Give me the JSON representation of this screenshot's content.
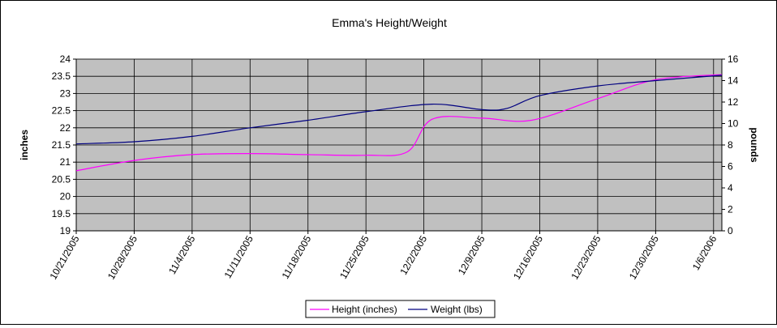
{
  "chart_data": {
    "type": "line",
    "title": "Emma's Height/Weight",
    "ylabel": "inches",
    "y2label": "pounds",
    "xlabel": "",
    "x_ticks": [
      "10/21/2005",
      "10/28/2005",
      "11/4/2005",
      "11/11/2005",
      "11/18/2005",
      "11/25/2005",
      "12/2/2005",
      "12/9/2005",
      "12/16/2005",
      "12/23/2005",
      "12/30/2005",
      "1/6/2006"
    ],
    "x_range": [
      "10/21/2005",
      "1/7/2006"
    ],
    "ylim": [
      19,
      24
    ],
    "y_ticks": [
      "19",
      "19.5",
      "20",
      "20.5",
      "21",
      "21.5",
      "22",
      "22.5",
      "23",
      "23.5",
      "24"
    ],
    "y2lim": [
      0,
      16
    ],
    "y2_ticks": [
      "0",
      "2",
      "4",
      "6",
      "8",
      "10",
      "12",
      "14",
      "16"
    ],
    "grid": "vertical and horizontal",
    "plot_background": "#c0c0c0",
    "legend_position": "bottom",
    "series": [
      {
        "name": "Height (inches)",
        "axis": "left",
        "color": "#ff00ff",
        "points": [
          {
            "x": "10/21/2005",
            "y": 20.75
          },
          {
            "x": "10/28/2005",
            "y": 21.05
          },
          {
            "x": "11/4/2005",
            "y": 21.22
          },
          {
            "x": "11/11/2005",
            "y": 21.25
          },
          {
            "x": "11/18/2005",
            "y": 21.22
          },
          {
            "x": "11/25/2005",
            "y": 21.2
          },
          {
            "x": "11/30/2005",
            "y": 21.3
          },
          {
            "x": "12/3/2005",
            "y": 22.25
          },
          {
            "x": "12/9/2005",
            "y": 22.28
          },
          {
            "x": "12/15/2005",
            "y": 22.22
          },
          {
            "x": "12/23/2005",
            "y": 22.85
          },
          {
            "x": "12/30/2005",
            "y": 23.4
          },
          {
            "x": "1/7/2006",
            "y": 23.55
          }
        ]
      },
      {
        "name": "Weight (lbs)",
        "axis": "right",
        "color": "#000080",
        "points": [
          {
            "x": "10/21/2005",
            "y": 8.1
          },
          {
            "x": "10/28/2005",
            "y": 8.3
          },
          {
            "x": "11/4/2005",
            "y": 8.8
          },
          {
            "x": "11/11/2005",
            "y": 9.6
          },
          {
            "x": "11/18/2005",
            "y": 10.3
          },
          {
            "x": "11/25/2005",
            "y": 11.1
          },
          {
            "x": "12/3/2005",
            "y": 11.8
          },
          {
            "x": "12/9/2005",
            "y": 11.3
          },
          {
            "x": "12/12/2005",
            "y": 11.4
          },
          {
            "x": "12/16/2005",
            "y": 12.6
          },
          {
            "x": "12/23/2005",
            "y": 13.5
          },
          {
            "x": "12/30/2005",
            "y": 14.0
          },
          {
            "x": "1/7/2006",
            "y": 14.5
          }
        ]
      }
    ]
  }
}
